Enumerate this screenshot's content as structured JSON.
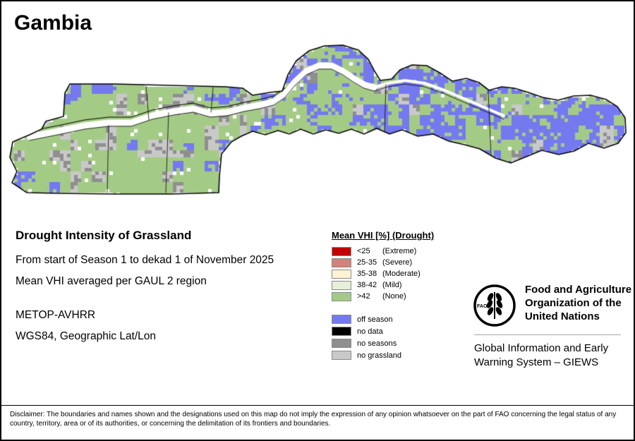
{
  "title": "Gambia",
  "info": {
    "heading": "Drought Intensity of Grassland",
    "period_line": "From start of Season 1 to dekad 1 of November 2025",
    "aggregation_line": "Mean VHI averaged per GAUL 2 region",
    "sensor": "METOP-AVHRR",
    "projection": "WGS84, Geographic Lat/Lon"
  },
  "legend": {
    "title": "Mean VHI [%] (Drought)",
    "classes": [
      {
        "range": "<25",
        "name": "(Extreme)",
        "color": "#c00000"
      },
      {
        "range": "25-35",
        "name": "(Severe)",
        "color": "#d2837b"
      },
      {
        "range": "35-38",
        "name": "(Moderate)",
        "color": "#fdf3d3"
      },
      {
        "range": "38-42",
        "name": "(Mild)",
        "color": "#e7efd9"
      },
      {
        "range": ">42",
        "name": "(None)",
        "color": "#a4cb86"
      }
    ],
    "extras": [
      {
        "label": "off season",
        "color": "#7579ef"
      },
      {
        "label": "no data",
        "color": "#000000"
      },
      {
        "label": "no seasons",
        "color": "#8f8f8f"
      },
      {
        "label": "no grassland",
        "color": "#c9c9c9"
      }
    ]
  },
  "footer": {
    "fao_logo_text": "FAO",
    "fao_name": "Food and Agriculture Organization of the United Nations",
    "giews": "Global Information and Early Warning System – GIEWS",
    "disclaimer": "Disclaimer: The boundaries and names shown and the designations used on this map do not imply the expression of any opinion whatsoever on the part of FAO concerning the legal status of any country, territory, area or of its authorities, or concerning the delimitation of its frontiers and boundaries."
  },
  "map": {
    "region": "Gambia",
    "colors": {
      "none": "#a4cb86",
      "off_season": "#7579ef",
      "no_seasons": "#8f8f8f",
      "no_grassland": "#c9c9c9",
      "water": "#ffffff",
      "border": "#000000"
    }
  }
}
